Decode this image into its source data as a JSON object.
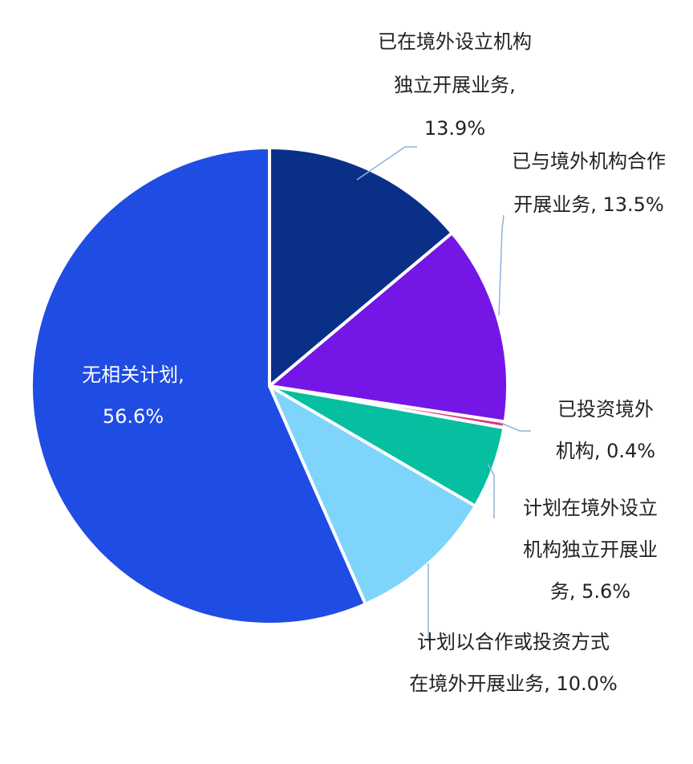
{
  "chart_data": {
    "type": "pie",
    "unit": "%",
    "slices": [
      {
        "label_lines": [
          "已在境外设立机构",
          "独立开展业务,",
          "13.9%"
        ],
        "value": 13.9,
        "color": "#0a2f87"
      },
      {
        "label_lines": [
          "已与境外机构合作",
          "开展业务, 13.5%"
        ],
        "value": 13.5,
        "color": "#7316e6"
      },
      {
        "label_lines": [
          "已投资境外",
          "机构, 0.4%"
        ],
        "value": 0.4,
        "color": "#e0357a"
      },
      {
        "label_lines": [
          "计划在境外设立",
          "机构独立开展业",
          "务, 5.6%"
        ],
        "value": 5.6,
        "color": "#05bfa0"
      },
      {
        "label_lines": [
          "计划以合作或投资方式",
          "在境外开展业务, 10.0%"
        ],
        "value": 10.0,
        "color": "#7fd4fc"
      },
      {
        "label_lines": [
          "无相关计划,",
          "56.6%"
        ],
        "value": 56.6,
        "color": "#1f4ce3"
      }
    ]
  }
}
